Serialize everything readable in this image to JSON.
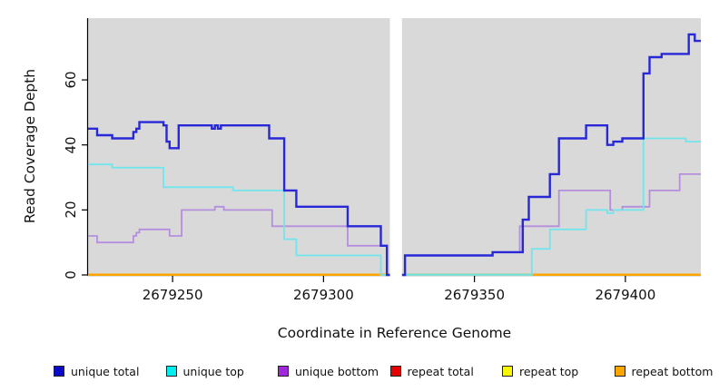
{
  "figure": {
    "background": "#ffffff",
    "plot_background": "#d9d9d9",
    "axis_color": "#000000",
    "text_color": "#111111"
  },
  "chart_data": {
    "type": "line",
    "line_style": "step-after",
    "title": "",
    "xlabel": "Coordinate in Reference Genome",
    "ylabel": "Read Coverage Depth",
    "xlim": [
      2679222,
      2679425
    ],
    "ylim": [
      0,
      79
    ],
    "xticks": [
      2679250,
      2679300,
      2679350,
      2679400
    ],
    "yticks": [
      0,
      20,
      40,
      60
    ],
    "grid": false,
    "legend_position": "bottom",
    "gap_region": {
      "x_start": 2679322,
      "x_end": 2679326
    },
    "baseline_segments": [
      {
        "color": "#ffa500",
        "x_start": 2679222,
        "x_end": 2679322,
        "y": 0
      },
      {
        "color": "#8cc98c",
        "x_start": 2679326,
        "x_end": 2679369,
        "y": 0
      },
      {
        "color": "#ffa500",
        "x_start": 2679369,
        "x_end": 2679425,
        "y": 0
      }
    ],
    "series": [
      {
        "name": "unique total",
        "legend_color": "#0a0ac8",
        "line_color": "#2828d8",
        "line_width": 2.4,
        "points": [
          [
            2679222,
            45
          ],
          [
            2679225,
            43
          ],
          [
            2679230,
            42
          ],
          [
            2679237,
            44
          ],
          [
            2679238,
            45
          ],
          [
            2679239,
            47
          ],
          [
            2679247,
            46
          ],
          [
            2679248,
            41
          ],
          [
            2679249,
            39
          ],
          [
            2679252,
            46
          ],
          [
            2679263,
            45
          ],
          [
            2679264,
            46
          ],
          [
            2679265,
            45
          ],
          [
            2679266,
            46
          ],
          [
            2679282,
            42
          ],
          [
            2679287,
            26
          ],
          [
            2679291,
            21
          ],
          [
            2679308,
            15
          ],
          [
            2679319,
            9
          ],
          [
            2679321,
            0
          ],
          [
            2679327,
            6
          ],
          [
            2679356,
            7
          ],
          [
            2679366,
            17
          ],
          [
            2679368,
            24
          ],
          [
            2679375,
            31
          ],
          [
            2679378,
            42
          ],
          [
            2679387,
            46
          ],
          [
            2679394,
            40
          ],
          [
            2679396,
            41
          ],
          [
            2679399,
            42
          ],
          [
            2679406,
            62
          ],
          [
            2679408,
            67
          ],
          [
            2679412,
            68
          ],
          [
            2679421,
            74
          ],
          [
            2679423,
            72
          ],
          [
            2679425,
            72
          ]
        ]
      },
      {
        "name": "unique top",
        "legend_color": "#00eeee",
        "line_color": "#72e5ec",
        "line_width": 1.8,
        "points": [
          [
            2679222,
            34
          ],
          [
            2679230,
            33
          ],
          [
            2679247,
            27
          ],
          [
            2679270,
            26
          ],
          [
            2679287,
            11
          ],
          [
            2679291,
            6
          ],
          [
            2679319,
            0
          ],
          [
            2679369,
            8
          ],
          [
            2679375,
            14
          ],
          [
            2679387,
            20
          ],
          [
            2679394,
            19
          ],
          [
            2679396,
            20
          ],
          [
            2679406,
            42
          ],
          [
            2679420,
            41
          ],
          [
            2679425,
            41
          ]
        ]
      },
      {
        "name": "unique bottom",
        "legend_color": "#a228e0",
        "line_color": "#b68ede",
        "line_width": 1.8,
        "points": [
          [
            2679222,
            12
          ],
          [
            2679225,
            10
          ],
          [
            2679237,
            12
          ],
          [
            2679238,
            13
          ],
          [
            2679239,
            14
          ],
          [
            2679249,
            12
          ],
          [
            2679253,
            20
          ],
          [
            2679264,
            21
          ],
          [
            2679267,
            20
          ],
          [
            2679283,
            15
          ],
          [
            2679308,
            9
          ],
          [
            2679321,
            0
          ],
          [
            2679327,
            6
          ],
          [
            2679356,
            7
          ],
          [
            2679365,
            15
          ],
          [
            2679378,
            26
          ],
          [
            2679395,
            20
          ],
          [
            2679399,
            21
          ],
          [
            2679408,
            26
          ],
          [
            2679418,
            31
          ],
          [
            2679425,
            31
          ]
        ]
      },
      {
        "name": "repeat total",
        "legend_color": "#e80000",
        "line_color": "#e80000",
        "line_width": 1.8,
        "points": [
          [
            2679222,
            0
          ],
          [
            2679425,
            0
          ]
        ]
      },
      {
        "name": "repeat top",
        "legend_color": "#f8f800",
        "line_color": "#f8f800",
        "line_width": 1.8,
        "points": [
          [
            2679222,
            0
          ],
          [
            2679425,
            0
          ]
        ]
      },
      {
        "name": "repeat bottom",
        "legend_color": "#ffa500",
        "line_color": "#ffa500",
        "line_width": 2,
        "points": [
          [
            2679222,
            0
          ],
          [
            2679425,
            0
          ]
        ]
      }
    ]
  }
}
